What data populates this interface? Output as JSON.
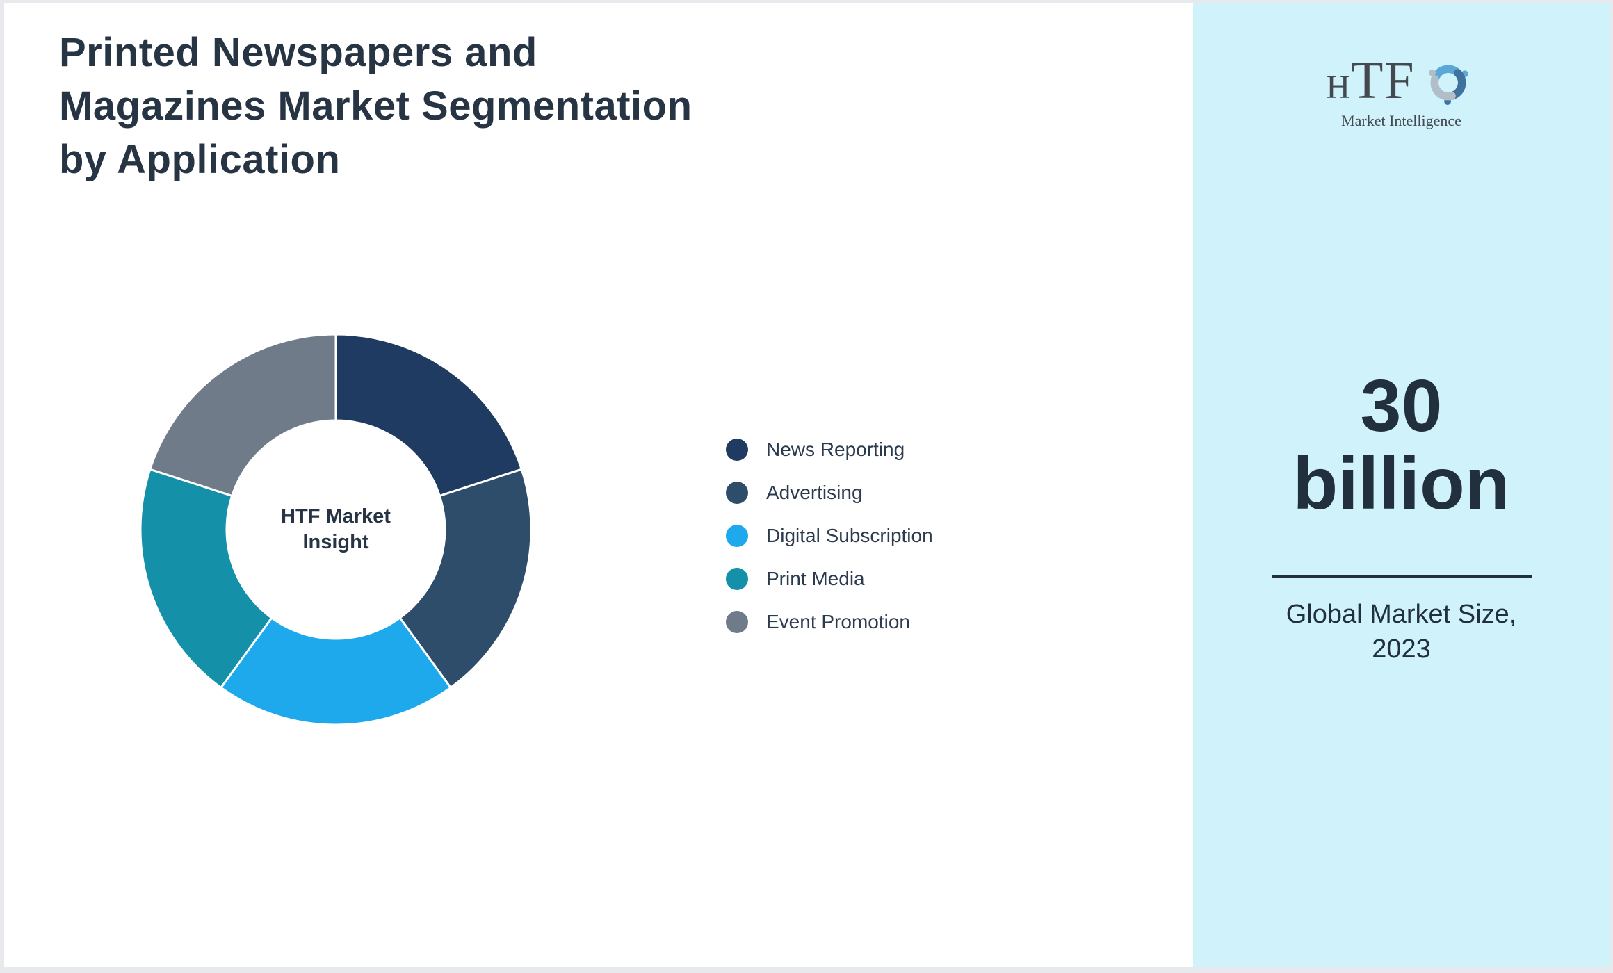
{
  "header": {
    "title": "Printed Newspapers and\nMagazines Market Segmentation\nby Application"
  },
  "chart_data": {
    "type": "pie",
    "variant": "donut",
    "title": "Printed Newspapers and Magazines Market Segmentation by Application",
    "center_label": "HTF Market\nInsight",
    "labels": [
      "News Reporting",
      "Advertising",
      "Digital Subscription",
      "Print Media",
      "Event Promotion"
    ],
    "values": [
      20,
      20,
      20,
      20,
      20
    ],
    "values_note": "equal shares estimated from segment angles (~72° each); no numeric labels shown",
    "colors": [
      "#1f3b61",
      "#2e4d6b",
      "#1ea9ec",
      "#1490a8",
      "#6f7b89"
    ],
    "start_angle_deg": 0,
    "inner_radius_ratio": 0.56,
    "legend_position": "right-of-chart",
    "grid": false
  },
  "sidebar": {
    "logo": {
      "h": "H",
      "tf": "TF",
      "subtitle": "Market Intelligence",
      "swirl_colors": [
        "#5aa7d8",
        "#3f729d",
        "#b3bdc7"
      ]
    },
    "market_size_value": "30\nbillion",
    "market_size_caption": "Global Market Size,\n2023"
  },
  "theme": {
    "ink": "#273444",
    "ink2": "#22303e",
    "legend_text": "#2b3a4d",
    "sidebar_bg": "#d0f2fa",
    "border": "#e7e9ec",
    "logo_ink": "#44494f",
    "segment_gap_color": "#ffffff"
  }
}
